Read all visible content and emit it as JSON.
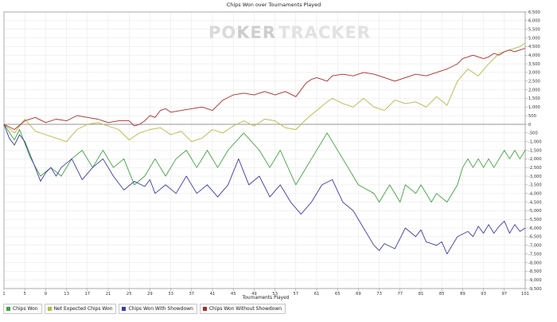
{
  "watermark": {
    "part1": "PO",
    "part2": "KER",
    "part3": "TRACKER"
  },
  "chart_data": {
    "type": "line",
    "title": "Chips Won over Tournaments Played",
    "xlabel": "Tournaments Played",
    "ylabel": "",
    "xlim": [
      1,
      101
    ],
    "ylim": [
      -9500,
      6500
    ],
    "y_tick_step": 500,
    "x_ticks": [
      1,
      5,
      9,
      13,
      17,
      21,
      25,
      29,
      33,
      37,
      41,
      45,
      49,
      53,
      57,
      61,
      65,
      69,
      73,
      77,
      81,
      85,
      89,
      93,
      97,
      101
    ],
    "y_labels": [
      "-9,500",
      "-9,000",
      "-8,500",
      "-8,000",
      "-7,500",
      "-7,000",
      "-6,500",
      "-6,000",
      "-5,500",
      "-5,000",
      "-4,500",
      "-4,000",
      "-3,500",
      "-3,000",
      "-2,500",
      "-2,000",
      "-1,500",
      "-1,000",
      "-500",
      "0",
      "500",
      "1,000",
      "1,500",
      "2,000",
      "2,500",
      "3,000",
      "3,500",
      "4,000",
      "4,500",
      "5,000",
      "5,500",
      "6,000",
      "6,500"
    ],
    "grid": true,
    "legend_position": "bottom-left",
    "series": [
      {
        "name": "Chips Won",
        "color": "#3fa23f",
        "x": [
          1,
          3,
          4,
          6,
          8,
          10,
          12,
          14,
          16,
          18,
          20,
          22,
          24,
          26,
          28,
          30,
          32,
          34,
          36,
          38,
          40,
          42,
          44,
          47,
          50,
          52,
          54,
          57,
          60,
          63,
          66,
          69,
          72,
          73,
          75,
          77,
          78,
          80,
          81,
          83,
          84,
          86,
          88,
          89,
          90,
          91,
          92,
          93,
          94,
          95,
          96,
          97,
          98,
          99,
          100,
          101
        ],
        "y": [
          0,
          -900,
          -300,
          -1900,
          -3000,
          -2500,
          -3000,
          -2000,
          -1500,
          -2500,
          -1500,
          -2500,
          -2000,
          -3500,
          -3000,
          -2000,
          -3000,
          -2000,
          -1500,
          -2500,
          -1500,
          -2500,
          -1500,
          -500,
          -1500,
          -2500,
          -1500,
          -3500,
          -2000,
          -500,
          -2000,
          -3500,
          -4000,
          -4500,
          -3500,
          -4500,
          -3500,
          -4000,
          -3500,
          -4500,
          -4000,
          -4500,
          -3500,
          -2500,
          -2000,
          -2500,
          -2000,
          -2500,
          -2000,
          -2500,
          -2000,
          -1500,
          -2000,
          -1500,
          -2000,
          -1500
        ]
      },
      {
        "name": "Net Expected Chips Won",
        "color": "#b5b947",
        "x": [
          1,
          3,
          5,
          7,
          9,
          11,
          13,
          15,
          17,
          19,
          21,
          23,
          25,
          27,
          29,
          31,
          33,
          35,
          37,
          39,
          41,
          43,
          45,
          47,
          49,
          51,
          53,
          55,
          57,
          59,
          61,
          63,
          64,
          66,
          68,
          70,
          72,
          74,
          76,
          78,
          80,
          82,
          84,
          86,
          88,
          90,
          92,
          94,
          96,
          98,
          100,
          101
        ],
        "y": [
          0,
          -500,
          300,
          -400,
          -600,
          -800,
          -1000,
          -300,
          0,
          100,
          -100,
          -300,
          -900,
          -500,
          -300,
          -200,
          -600,
          -400,
          -1000,
          -800,
          -300,
          -500,
          -100,
          200,
          -100,
          300,
          200,
          -200,
          -300,
          300,
          800,
          1300,
          1500,
          1200,
          1000,
          1500,
          1000,
          800,
          1400,
          1200,
          1300,
          1000,
          1600,
          1100,
          2500,
          3200,
          2800,
          3500,
          4100,
          4300,
          4500,
          4700
        ]
      },
      {
        "name": "Chips Won With Showdown",
        "color": "#3c3caa",
        "x": [
          1,
          2,
          3,
          4,
          5,
          7,
          8,
          9,
          10,
          11,
          12,
          14,
          16,
          18,
          20,
          22,
          24,
          26,
          28,
          29,
          30,
          32,
          34,
          36,
          38,
          40,
          42,
          44,
          46,
          48,
          50,
          52,
          54,
          56,
          58,
          60,
          62,
          64,
          66,
          68,
          70,
          72,
          73,
          74,
          76,
          78,
          80,
          81,
          82,
          84,
          85,
          86,
          88,
          90,
          91,
          92,
          93,
          94,
          95,
          96,
          97,
          98,
          99,
          100,
          101
        ],
        "y": [
          0,
          -800,
          -1200,
          -600,
          -1000,
          -2500,
          -3300,
          -2800,
          -2500,
          -3000,
          -2500,
          -2000,
          -3200,
          -2500,
          -2000,
          -3000,
          -3800,
          -3300,
          -3600,
          -3200,
          -4000,
          -3500,
          -4000,
          -3000,
          -4000,
          -3500,
          -4200,
          -3500,
          -2000,
          -3500,
          -3000,
          -4200,
          -3500,
          -4500,
          -5200,
          -4500,
          -3500,
          -3200,
          -4500,
          -5000,
          -6000,
          -7000,
          -7300,
          -6900,
          -7200,
          -6000,
          -6500,
          -6100,
          -6800,
          -7000,
          -6800,
          -7500,
          -6500,
          -6200,
          -6500,
          -5900,
          -6300,
          -5800,
          -6300,
          -5900,
          -5600,
          -6300,
          -5800,
          -6200,
          -6000
        ]
      },
      {
        "name": "Chips Won Without Showdown",
        "color": "#b02a2a",
        "x": [
          1,
          3,
          5,
          7,
          9,
          11,
          13,
          15,
          17,
          19,
          21,
          23,
          25,
          26,
          27,
          28,
          29,
          30,
          31,
          32,
          33,
          35,
          37,
          39,
          41,
          43,
          45,
          47,
          49,
          51,
          53,
          55,
          57,
          59,
          60,
          61,
          62,
          63,
          64,
          66,
          68,
          70,
          72,
          73,
          74,
          76,
          78,
          80,
          82,
          84,
          86,
          88,
          89,
          90,
          91,
          92,
          93,
          94,
          95,
          96,
          97,
          98,
          99,
          100,
          101
        ],
        "y": [
          0,
          -300,
          200,
          400,
          100,
          300,
          200,
          500,
          400,
          300,
          100,
          200,
          200,
          -100,
          0,
          200,
          500,
          400,
          800,
          900,
          700,
          800,
          900,
          1000,
          800,
          1400,
          1700,
          1800,
          1700,
          1900,
          1700,
          1900,
          1600,
          2400,
          2600,
          2700,
          2600,
          2500,
          2800,
          2900,
          2800,
          3000,
          2900,
          2800,
          2700,
          2500,
          2700,
          2900,
          2800,
          3000,
          3200,
          3500,
          3800,
          3900,
          4000,
          3900,
          3800,
          3900,
          4100,
          4000,
          4200,
          4300,
          4200,
          4300,
          4400
        ]
      }
    ]
  }
}
